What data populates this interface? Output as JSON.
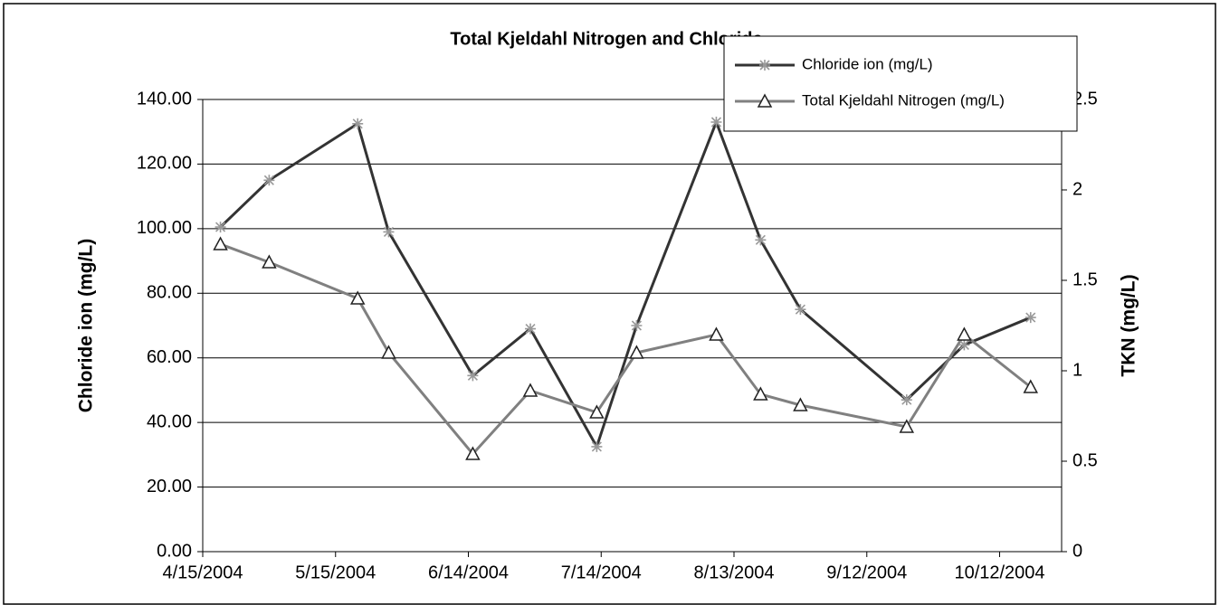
{
  "chart_data": {
    "type": "line",
    "title": "Total Kjeldahl Nitrogen and Chloride",
    "y_label": "Chloride ion (mg/L)",
    "y2_label": "TKN (mg/L)",
    "x": [
      "4/19/2004",
      "4/30/2004",
      "5/20/2004",
      "5/27/2004",
      "6/15/2004",
      "6/28/2004",
      "7/13/2004",
      "7/22/2004",
      "8/9/2004",
      "8/19/2004",
      "8/28/2004",
      "9/21/2004",
      "10/4/2004",
      "10/19/2004"
    ],
    "series": [
      {
        "name": "Chloride ion (mg/L)",
        "color": "#333333",
        "marker": "asterisk",
        "values": [
          100.5,
          115,
          132.5,
          99,
          54.5,
          69,
          32.5,
          70,
          133,
          96.5,
          75,
          47,
          64,
          72.5
        ]
      },
      {
        "name": "Total Kjeldahl Nitrogen (mg/L)",
        "color": "#808080",
        "marker": "triangle",
        "axis": "y2",
        "values": [
          1.7,
          1.6,
          1.4,
          1.1,
          0.54,
          0.89,
          0.77,
          1.1,
          1.2,
          0.87,
          0.81,
          0.69,
          1.2,
          0.91
        ]
      }
    ],
    "xlim": [
      "4/15/2004",
      "10/26/2004"
    ],
    "xticks": [
      "4/15/2004",
      "5/15/2004",
      "6/14/2004",
      "7/14/2004",
      "8/13/2004",
      "9/12/2004",
      "10/12/2004"
    ],
    "ylim": [
      0,
      140
    ],
    "yticks": [
      {
        "value": 0,
        "label": "0.00"
      },
      {
        "value": 20,
        "label": "20.00"
      },
      {
        "value": 40,
        "label": "40.00"
      },
      {
        "value": 60,
        "label": "60.00"
      },
      {
        "value": 80,
        "label": "80.00"
      },
      {
        "value": 100,
        "label": "100.00"
      },
      {
        "value": 120,
        "label": "120.00"
      },
      {
        "value": 140,
        "label": "140.00"
      }
    ],
    "y2lim": [
      0,
      2.5
    ],
    "y2ticks": [
      0,
      0.5,
      1,
      1.5,
      2,
      2.5
    ],
    "grid": true,
    "legend": "top-right"
  }
}
